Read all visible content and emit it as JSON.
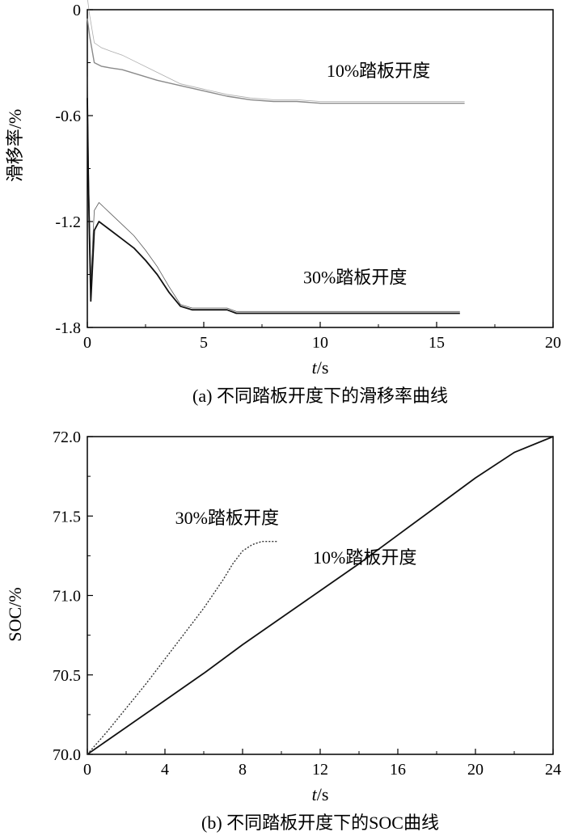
{
  "chart_data": [
    {
      "type": "line",
      "caption": "(a) 不同踏板开度下的滑移率曲线",
      "xlabel_italic": "t",
      "xlabel_unit": "/s",
      "ylabel": "滑移率/%",
      "xlim": [
        0,
        20
      ],
      "ylim": [
        -1.8,
        0
      ],
      "xticks": [
        "0",
        "5",
        "10",
        "15",
        "20"
      ],
      "yticks": [
        "0",
        "-0.6",
        "-1.2",
        "-1.8"
      ],
      "series": [
        {
          "name": "10%踏板开度",
          "x": [
            0,
            0.1,
            0.3,
            0.6,
            1,
            1.5,
            2,
            3,
            4,
            5,
            6,
            7,
            8,
            9,
            10,
            11,
            12,
            13,
            14,
            15,
            16.2
          ],
          "y": [
            -0.05,
            -0.15,
            -0.3,
            -0.32,
            -0.33,
            -0.34,
            -0.36,
            -0.4,
            -0.43,
            -0.46,
            -0.49,
            -0.51,
            -0.52,
            -0.52,
            -0.53,
            -0.53,
            -0.53,
            -0.53,
            -0.53,
            -0.53,
            -0.53
          ]
        },
        {
          "name": "30%踏板开度",
          "x": [
            0,
            0.05,
            0.15,
            0.3,
            0.5,
            1,
            1.5,
            2,
            2.5,
            3,
            3.5,
            4,
            4.5,
            5,
            6,
            6.4,
            7,
            8,
            10,
            12,
            14,
            16
          ],
          "y": [
            -0.5,
            -1.0,
            -1.65,
            -1.25,
            -1.2,
            -1.25,
            -1.3,
            -1.35,
            -1.42,
            -1.5,
            -1.6,
            -1.68,
            -1.7,
            -1.7,
            -1.7,
            -1.72,
            -1.72,
            -1.72,
            -1.72,
            -1.72,
            -1.72,
            -1.72
          ]
        }
      ],
      "annotations": [
        {
          "text": "10%踏板开度",
          "x": 12.5,
          "y": -0.38
        },
        {
          "text": "30%踏板开度",
          "x": 11.5,
          "y": -1.55
        }
      ]
    },
    {
      "type": "line",
      "caption": "(b) 不同踏板开度下的SOC曲线",
      "xlabel_italic": "t",
      "xlabel_unit": "/s",
      "ylabel": "SOC/%",
      "xlim": [
        0,
        24
      ],
      "ylim": [
        70.0,
        72.0
      ],
      "xticks": [
        "0",
        "4",
        "8",
        "12",
        "16",
        "20",
        "24"
      ],
      "yticks": [
        "70.0",
        "70.5",
        "71.0",
        "71.5",
        "72.0"
      ],
      "series": [
        {
          "name": "10%踏板开度",
          "x": [
            0,
            2,
            4,
            6,
            8,
            10,
            12,
            14,
            16,
            18,
            20,
            22,
            24
          ],
          "y": [
            70.0,
            70.17,
            70.34,
            70.51,
            70.69,
            70.86,
            71.03,
            71.2,
            71.38,
            71.56,
            71.74,
            71.9,
            72.0
          ]
        },
        {
          "name": "30%踏板开度",
          "x": [
            0,
            1,
            2,
            3,
            4,
            5,
            6,
            7,
            7.5,
            8,
            8.5,
            9,
            9.8
          ],
          "y": [
            70.0,
            70.14,
            70.29,
            70.44,
            70.6,
            70.76,
            70.92,
            71.1,
            71.2,
            71.28,
            71.32,
            71.34,
            71.34
          ]
        }
      ],
      "annotations": [
        {
          "text": "30%踏板开度",
          "x": 7.2,
          "y": 71.45
        },
        {
          "text": "10%踏板开度",
          "x": 14.3,
          "y": 71.2
        }
      ]
    }
  ]
}
